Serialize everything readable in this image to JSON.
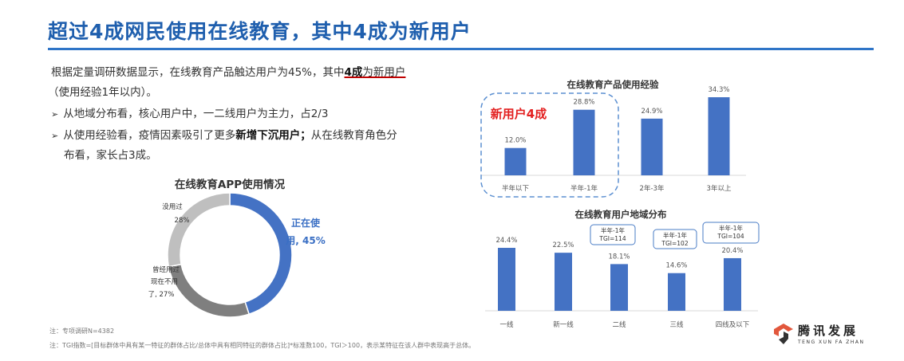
{
  "header": {
    "title": "超过4成网民使用在线教育，其中4成为新用户"
  },
  "summary": {
    "line1_pre": "根据定量调研数据显示，在线教育产品触达用户为45%，其中",
    "line1_bold": "4成",
    "line1_post": "为新用户",
    "line2": "（使用经验1年以内）。",
    "bullet1": "从地域分布看，核心用户中，一二线用户为主力，占2/3",
    "bullet2_pre": "从使用经验看，疫情因素吸引了更多",
    "bullet2_bold": "新增下沉用户；",
    "bullet2_post": "从在线教育角色分",
    "bullet2_line2": "布看，家长占3成。"
  },
  "chart_data": [
    {
      "type": "pie",
      "title": "在线教育APP使用情况",
      "labels": [
        "正在使用, 45%",
        "曾经用过现在不用了, 27%",
        "没用过 28%"
      ],
      "label_lines": [
        [
          "正在使",
          "用, 45%"
        ],
        [
          "曾经用过",
          "现在不用",
          "了, 27%"
        ],
        [
          "没用过",
          "28%"
        ]
      ],
      "values": [
        45,
        27,
        28
      ],
      "colors": [
        "#4472c4",
        "#7f7f7f",
        "#bfbfbf"
      ]
    },
    {
      "type": "bar",
      "title": "在线教育产品使用经验",
      "categories": [
        "半年以下",
        "半年-1年",
        "2年-3年",
        "3年以上"
      ],
      "values": [
        12.0,
        28.8,
        24.9,
        34.3
      ],
      "value_labels": [
        "12.0%",
        "28.8%",
        "24.9%",
        "34.3%"
      ],
      "annotation": "新用户4成",
      "color": "#4472c4"
    },
    {
      "type": "bar",
      "title": "在线教育用户地域分布",
      "categories": [
        "一线",
        "新一线",
        "二线",
        "三线",
        "四线及以下"
      ],
      "values": [
        24.4,
        22.5,
        18.1,
        14.6,
        20.4
      ],
      "value_labels": [
        "24.4%",
        "22.5%",
        "18.1%",
        "14.6%",
        "20.4%"
      ],
      "callouts": [
        {
          "category": "二线",
          "lines": [
            "半年-1年",
            "TGI=114"
          ]
        },
        {
          "category": "三线",
          "lines": [
            "半年-1年",
            "TGI=102"
          ]
        },
        {
          "category": "四线及以下",
          "lines": [
            "半年-1年",
            "TGI=104"
          ]
        }
      ],
      "color": "#4472c4"
    }
  ],
  "notes": {
    "note1": "注：专项调研N=4382",
    "note2": "注：TGI指数=[目标群体中具有某一特征的群体占比/总体中具有相同特征的群体占比]*标准数100，TGI＞100，表示某特征在该人群中表现高于总体。"
  },
  "logo": {
    "name": "腾讯发展",
    "sub": "TENG XUN FA ZHAN",
    "color": "#e2573c"
  }
}
